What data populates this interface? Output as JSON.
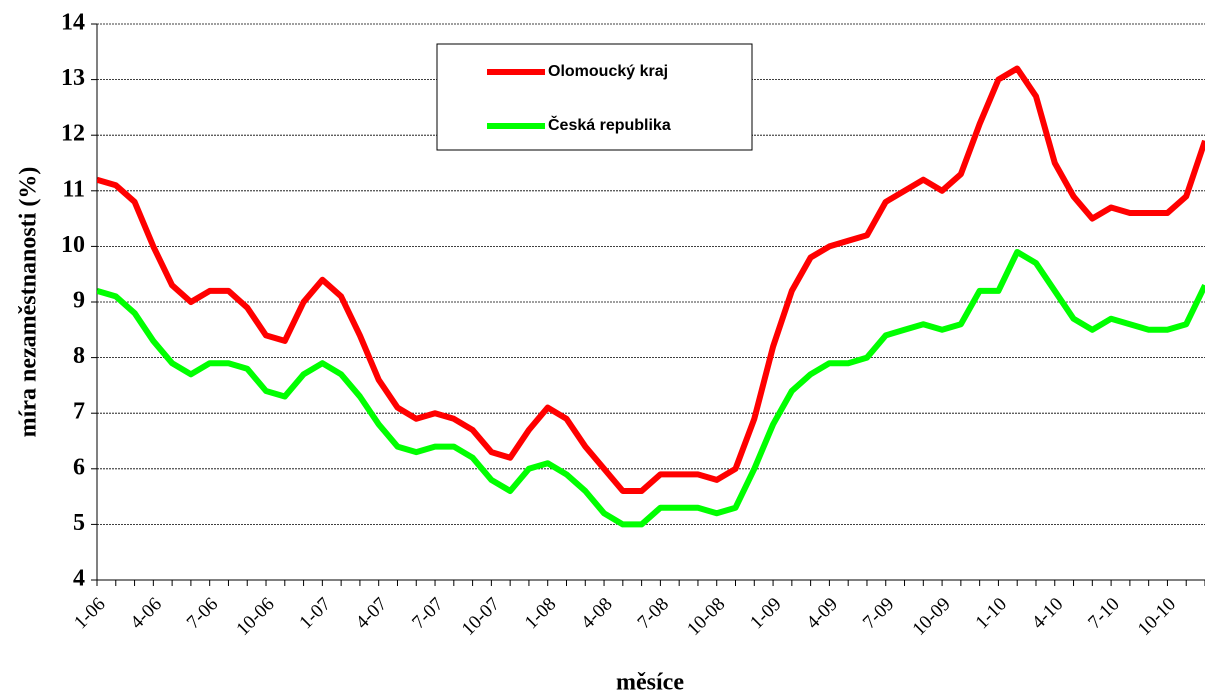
{
  "chart_data": {
    "type": "line",
    "x_label": "měsíce",
    "y_label": "míra nezaměstnanosti (%)",
    "categories": [
      "1-06",
      null,
      null,
      "4-06",
      null,
      null,
      "7-06",
      null,
      null,
      "10-06",
      null,
      null,
      "1-07",
      null,
      null,
      "4-07",
      null,
      null,
      "7-07",
      null,
      null,
      "10-07",
      null,
      null,
      "1-08",
      null,
      null,
      "4-08",
      null,
      null,
      "7-08",
      null,
      null,
      "10-08",
      null,
      null,
      "1-09",
      null,
      null,
      "4-09",
      null,
      null,
      "7-09",
      null,
      null,
      "10-09",
      null,
      null,
      "1-10",
      null,
      null,
      "4-10",
      null,
      null,
      "7-10",
      null,
      null,
      "10-10",
      null,
      null
    ],
    "series": [
      {
        "name": "Olomoucký kraj",
        "color": "#ff0000",
        "values": [
          11.2,
          11.1,
          10.8,
          10.0,
          9.3,
          9.0,
          9.2,
          9.2,
          8.9,
          8.4,
          8.3,
          9.0,
          9.4,
          9.1,
          8.4,
          7.6,
          7.1,
          6.9,
          7.0,
          6.9,
          6.7,
          6.3,
          6.2,
          6.7,
          7.1,
          6.9,
          6.4,
          6.0,
          5.6,
          5.6,
          5.9,
          5.9,
          5.9,
          5.8,
          6.0,
          6.9,
          8.2,
          9.2,
          9.8,
          10.0,
          10.1,
          10.2,
          10.8,
          11.0,
          11.2,
          11.0,
          11.3,
          12.2,
          13.0,
          13.2,
          12.7,
          11.5,
          10.9,
          10.5,
          10.7,
          10.6,
          10.6,
          10.6,
          10.9,
          11.9
        ]
      },
      {
        "name": "Česká republika",
        "color": "#00ff00",
        "values": [
          9.2,
          9.1,
          8.8,
          8.3,
          7.9,
          7.7,
          7.9,
          7.9,
          7.8,
          7.4,
          7.3,
          7.7,
          7.9,
          7.7,
          7.3,
          6.8,
          6.4,
          6.3,
          6.4,
          6.4,
          6.2,
          5.8,
          5.6,
          6.0,
          6.1,
          5.9,
          5.6,
          5.2,
          5.0,
          5.0,
          5.3,
          5.3,
          5.3,
          5.2,
          5.3,
          6.0,
          6.8,
          7.4,
          7.7,
          7.9,
          7.9,
          8.0,
          8.4,
          8.5,
          8.6,
          8.5,
          8.6,
          9.2,
          9.2,
          9.9,
          9.7,
          9.2,
          8.7,
          8.5,
          8.7,
          8.6,
          8.5,
          8.5,
          8.6,
          9.3
        ]
      }
    ],
    "ylim": [
      4,
      14
    ],
    "yticks": [
      4,
      5,
      6,
      7,
      8,
      9,
      10,
      11,
      12,
      13,
      14
    ],
    "grid": true
  }
}
